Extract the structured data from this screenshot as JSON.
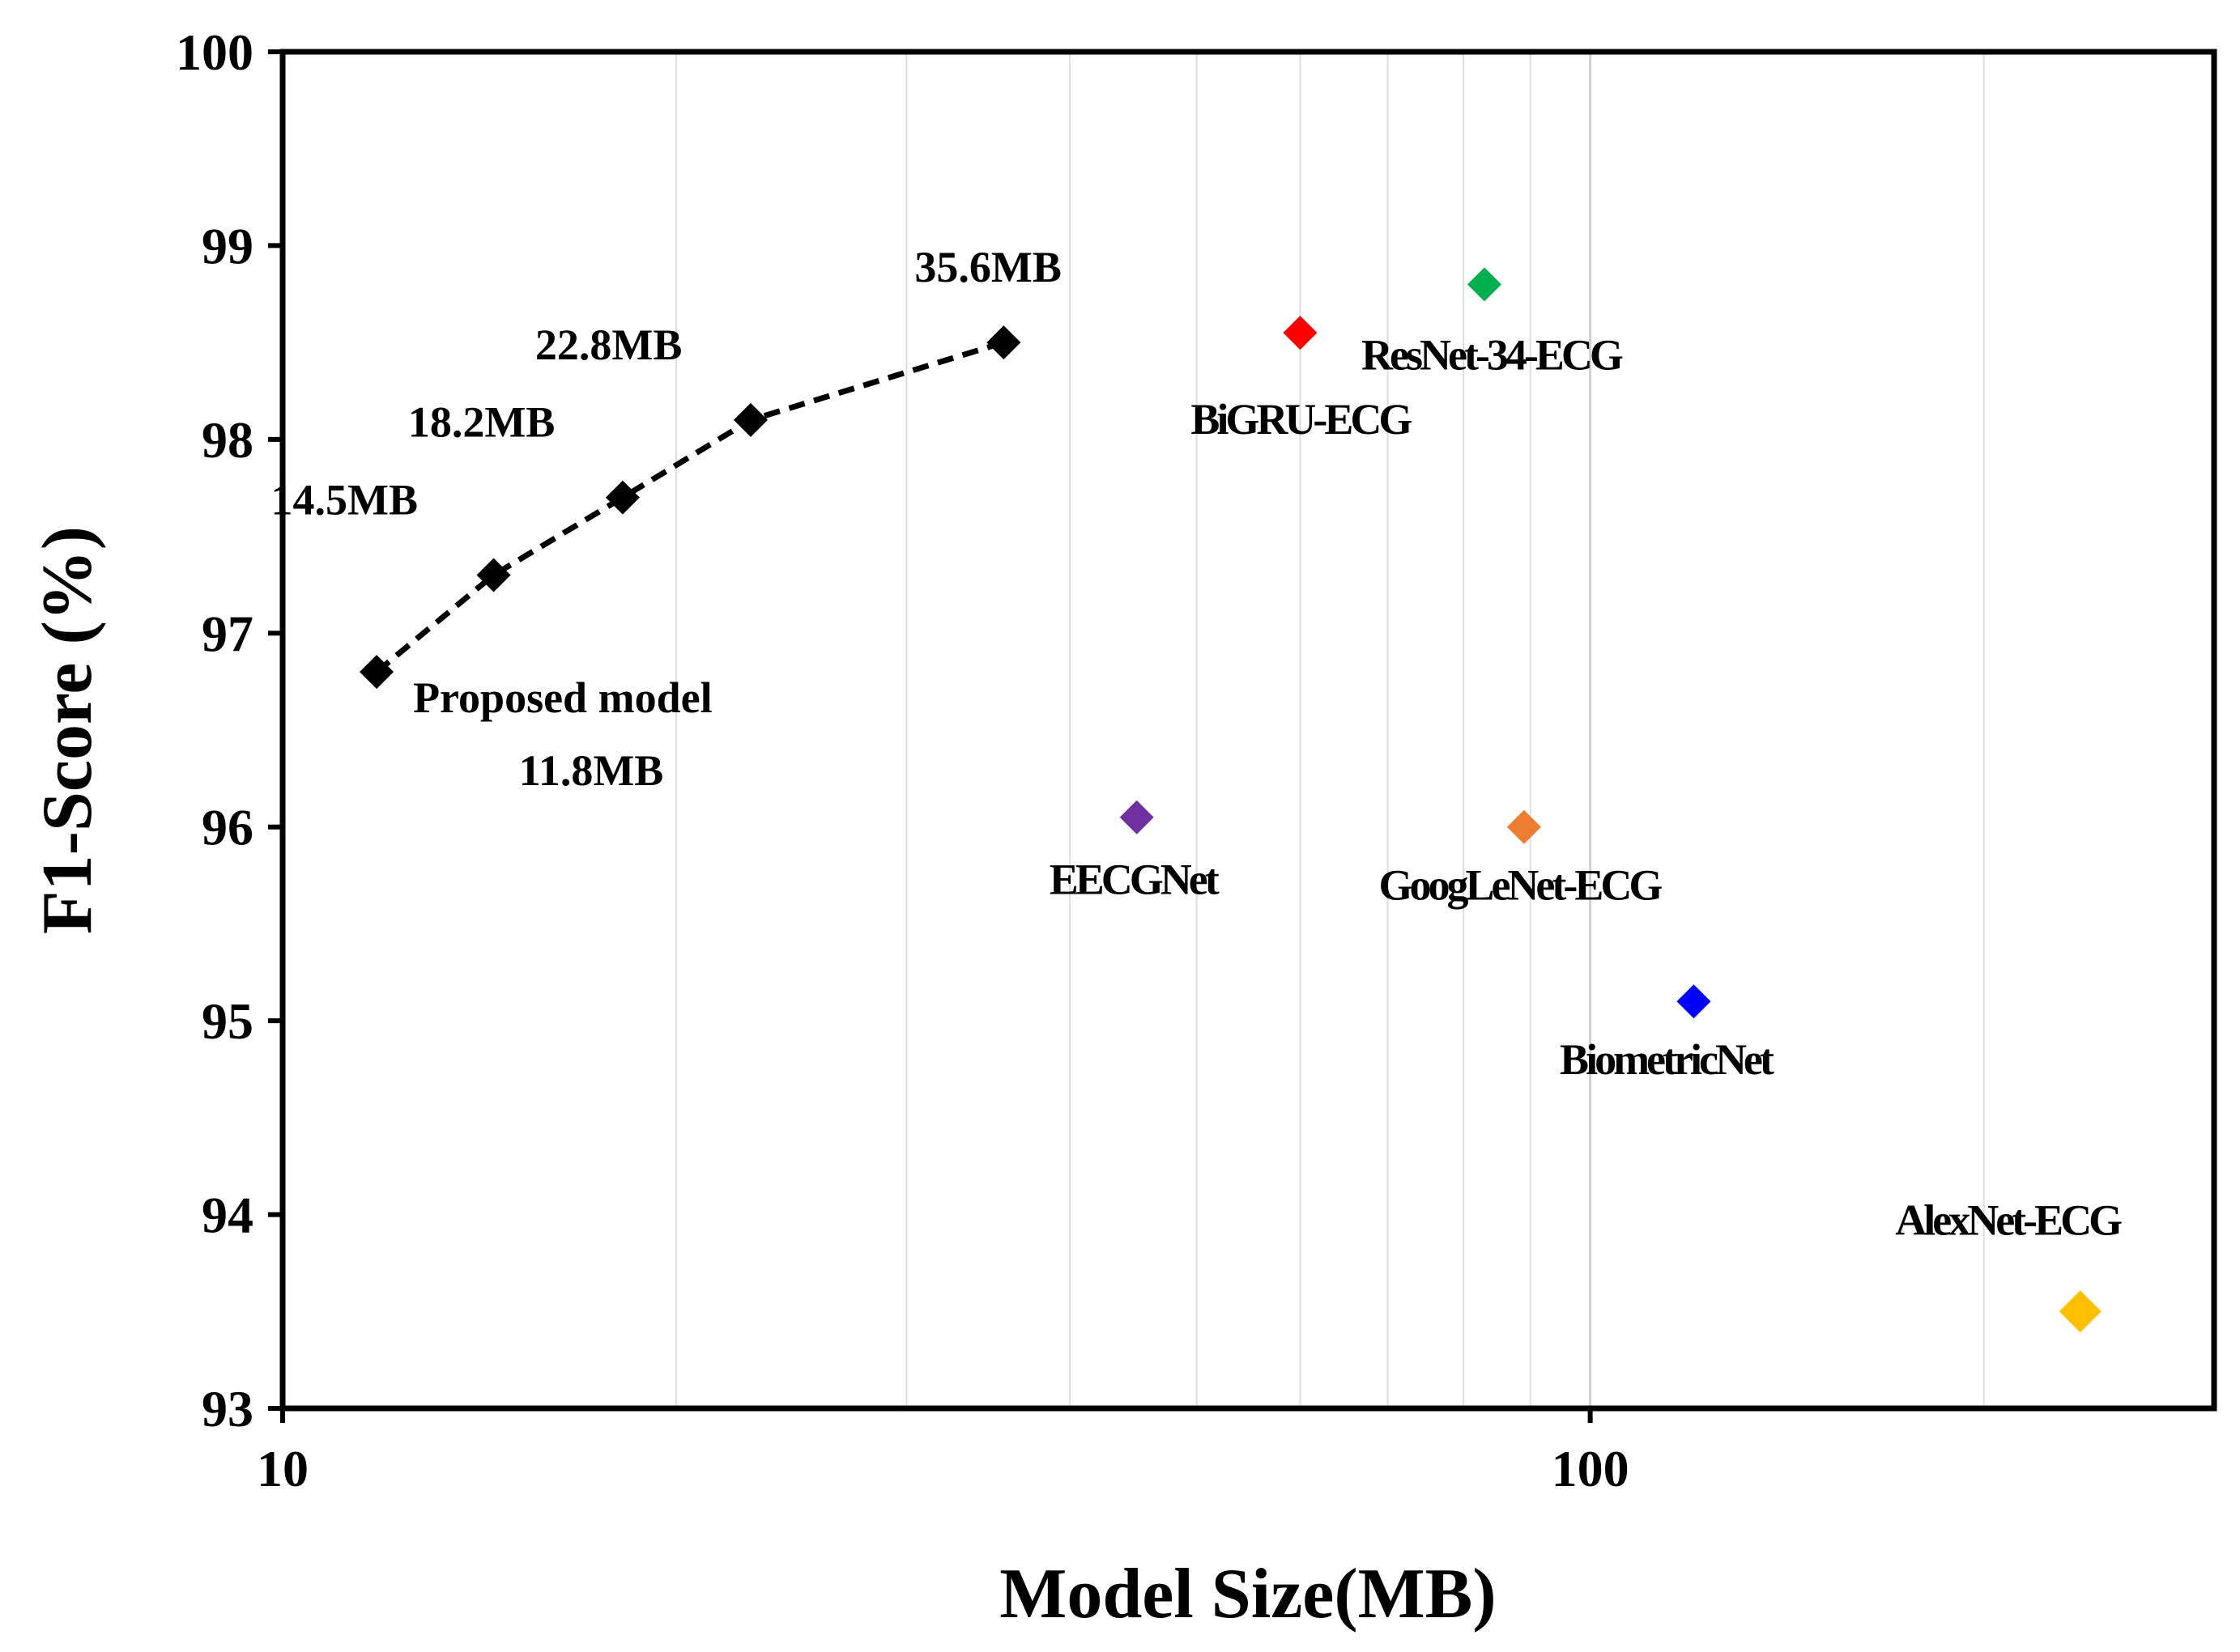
{
  "chart_data": {
    "type": "scatter",
    "xlabel": "Model Size(MB)",
    "ylabel": "F1-Score (%)",
    "xscale": "log",
    "xlim": [
      10,
      300
    ],
    "ylim": [
      93,
      100
    ],
    "x_ticks": [
      {
        "value": 10,
        "label": "10"
      },
      {
        "value": 100,
        "label": "100"
      }
    ],
    "y_ticks": [
      93,
      94,
      95,
      96,
      97,
      98,
      99,
      100
    ],
    "grid": "vertical minor gridlines",
    "series": [
      {
        "name": "Proposed model",
        "line": "dashed",
        "color": "#000000",
        "points": [
          {
            "x": 11.8,
            "y": 96.8,
            "label": "Proposed model",
            "label2": "11.8MB"
          },
          {
            "x": 14.5,
            "y": 97.3,
            "label": "14.5MB"
          },
          {
            "x": 18.2,
            "y": 97.7,
            "label": "18.2MB"
          },
          {
            "x": 22.8,
            "y": 98.1,
            "label": "22.8MB"
          },
          {
            "x": 35.6,
            "y": 98.5,
            "label": "35.6MB"
          }
        ]
      },
      {
        "name": "BiGRU-ECG",
        "color": "#ff0000",
        "points": [
          {
            "x": 60,
            "y": 98.55,
            "label": "BiGRU-ECG"
          }
        ]
      },
      {
        "name": "ResNet-34-ECG",
        "color": "#00b050",
        "points": [
          {
            "x": 83,
            "y": 98.8,
            "label": "ResNet-34-ECG"
          }
        ]
      },
      {
        "name": "EECGNet",
        "color": "#7030a0",
        "points": [
          {
            "x": 45,
            "y": 96.05,
            "label": "EECGNet"
          }
        ]
      },
      {
        "name": "GoogLeNet-ECG",
        "color": "#ed7d31",
        "points": [
          {
            "x": 89,
            "y": 96.0,
            "label": "GoogLeNet-ECG"
          }
        ]
      },
      {
        "name": "BiometricNet",
        "color": "#0000ff",
        "points": [
          {
            "x": 120,
            "y": 95.1,
            "label": "BiometricNet"
          }
        ]
      },
      {
        "name": "AlexNet-ECG",
        "color": "#ffc000",
        "points": [
          {
            "x": 237,
            "y": 93.5,
            "label": "AlexNet-ECG"
          }
        ]
      }
    ]
  }
}
